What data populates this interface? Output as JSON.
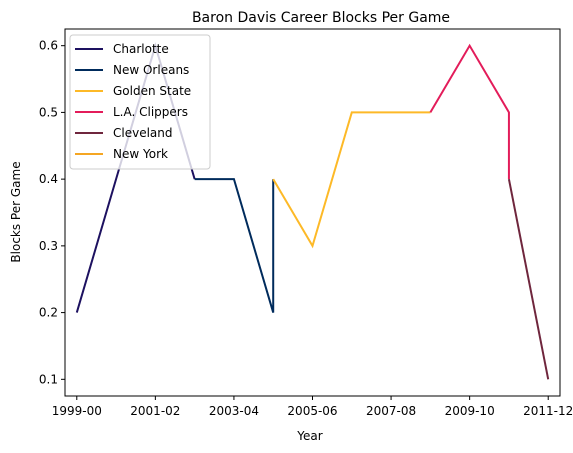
{
  "chart_data": {
    "type": "line",
    "title": "Baron Davis Career Blocks Per Game",
    "xlabel": "Year",
    "ylabel": "Blocks Per Game",
    "x_ticks": [
      "1999-00",
      "2001-02",
      "2003-04",
      "2005-06",
      "2007-08",
      "2009-10",
      "2011-12"
    ],
    "xlim": [
      -0.3,
      12.3
    ],
    "ylim": [
      0.075,
      0.625
    ],
    "y_ticks": [
      0.1,
      0.2,
      0.3,
      0.4,
      0.5,
      0.6
    ],
    "grid": false,
    "legend": "top-left",
    "series": [
      {
        "name": "Charlotte",
        "color": "#1d1160",
        "points": [
          {
            "x": 0,
            "y": 0.2
          },
          {
            "x": 1,
            "y": 0.4
          },
          {
            "x": 2,
            "y": 0.6
          },
          {
            "x": 3,
            "y": 0.4
          }
        ]
      },
      {
        "name": "New Orleans",
        "color": "#002b5c",
        "points": [
          {
            "x": 3,
            "y": 0.4
          },
          {
            "x": 4,
            "y": 0.4
          },
          {
            "x": 5,
            "y": 0.2
          },
          {
            "x": 5,
            "y": 0.4
          }
        ]
      },
      {
        "name": "Golden State",
        "color": "#fdb927",
        "points": [
          {
            "x": 5,
            "y": 0.4
          },
          {
            "x": 6,
            "y": 0.3
          },
          {
            "x": 7,
            "y": 0.5
          },
          {
            "x": 8,
            "y": 0.5
          },
          {
            "x": 9,
            "y": 0.5
          }
        ]
      },
      {
        "name": "L.A. Clippers",
        "color": "#e31c5a",
        "points": [
          {
            "x": 9,
            "y": 0.5
          },
          {
            "x": 10,
            "y": 0.6
          },
          {
            "x": 11,
            "y": 0.5
          },
          {
            "x": 11,
            "y": 0.4
          }
        ]
      },
      {
        "name": "Cleveland",
        "color": "#6f263d",
        "points": [
          {
            "x": 11,
            "y": 0.4
          },
          {
            "x": 12,
            "y": 0.1
          }
        ]
      },
      {
        "name": "New York",
        "color": "#f5a623",
        "points": []
      }
    ]
  }
}
